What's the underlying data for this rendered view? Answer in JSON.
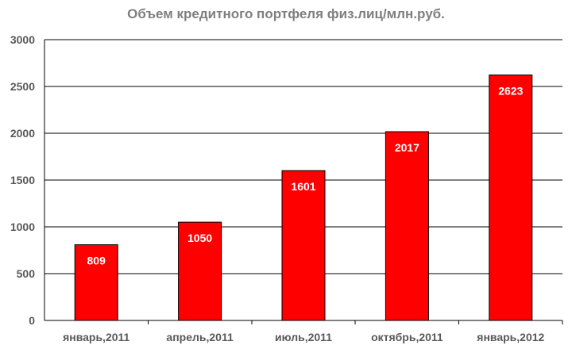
{
  "chart_data": {
    "type": "bar",
    "title": "Объем кредитного портфеля физ.лиц/млн.руб.",
    "xlabel": "",
    "ylabel": "",
    "categories": [
      "январь,2011",
      "апрель,2011",
      "июль,2011",
      "октябрь,2011",
      "январь,2012"
    ],
    "values": [
      809,
      1050,
      1601,
      2017,
      2623
    ],
    "value_labels": [
      "809",
      "1050",
      "1601",
      "2017",
      "2623"
    ],
    "ylim": [
      0,
      3000
    ],
    "yticks": [
      0,
      500,
      1000,
      1500,
      2000,
      2500,
      3000
    ],
    "ytick_labels": [
      "0",
      "500",
      "1000",
      "1500",
      "2000",
      "2500",
      "3000"
    ],
    "grid": true,
    "legend": "none",
    "colors": {
      "bar_fill": "#ff0000",
      "bar_stroke": "#000000",
      "grid": "#000000",
      "title": "#7f7f7f",
      "ticks": "#595959",
      "bar_label": "#ffffff"
    }
  }
}
